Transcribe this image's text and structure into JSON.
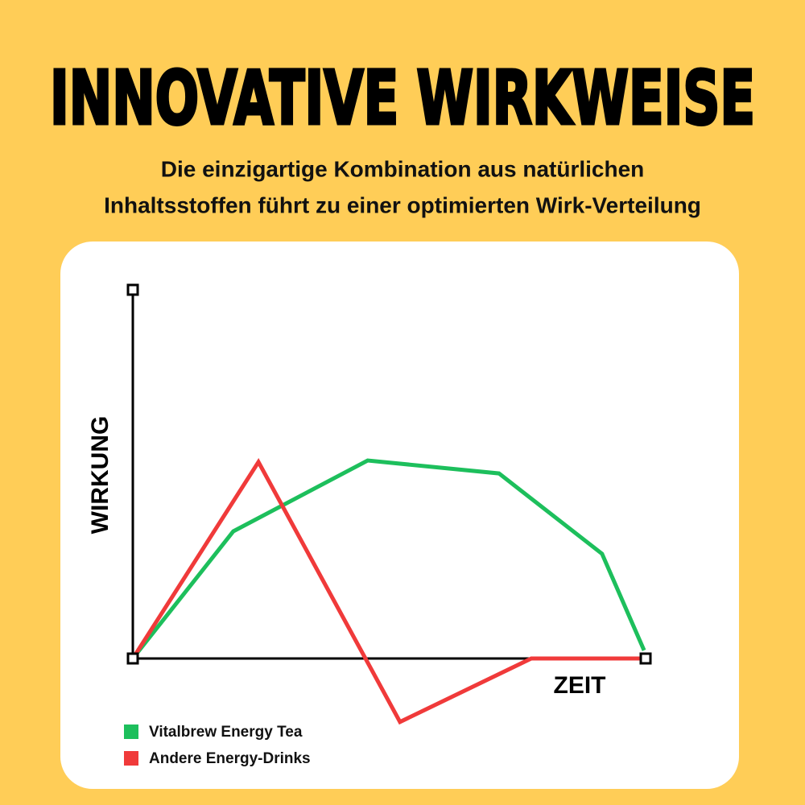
{
  "chart_data": {
    "type": "line",
    "title": "INNOVATIVE WIRKWEISE",
    "subtitle": [
      "Die einzigartige Kombination aus natürlichen",
      "Inhaltsstoffen führt zu einer optimierten Wirk-Verteilung"
    ],
    "x_label": "ZEIT",
    "y_label": "WIRKUNG",
    "xlim": [
      0,
      100
    ],
    "ylim": [
      -20,
      100
    ],
    "legend": "bottom-left",
    "series": [
      {
        "name": "Vitalbrew Energy Tea",
        "color": "#1dbf5c",
        "x": [
          0,
          19.6,
          45.8,
          71.4,
          91.5,
          99.7
        ],
        "values": [
          0,
          34.5,
          53.7,
          50.2,
          28.4,
          2.2
        ]
      },
      {
        "name": "Andere Energy-Drinks",
        "color": "#f03a3a",
        "x": [
          0,
          24.5,
          52.1,
          77.7,
          100
        ],
        "values": [
          0,
          53.3,
          -17.2,
          0,
          0
        ]
      }
    ]
  }
}
